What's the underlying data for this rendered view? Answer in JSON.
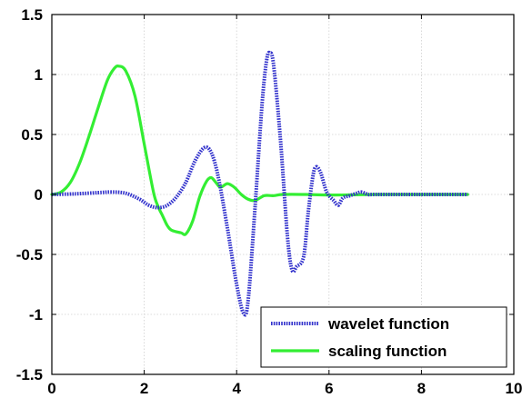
{
  "chart_data": {
    "type": "line",
    "title": "",
    "xlabel": "",
    "ylabel": "",
    "xlim": [
      0,
      10
    ],
    "ylim": [
      -1.5,
      1.5
    ],
    "grid": true,
    "legend_position": "bottom-right",
    "x_ticks": [
      0,
      2,
      4,
      6,
      8,
      10
    ],
    "x_tick_labels": [
      "0",
      "2",
      "4",
      "6",
      "8",
      "10"
    ],
    "y_ticks": [
      1.5,
      1,
      0.5,
      0,
      -0.5,
      -1,
      -1.5
    ],
    "y_tick_labels": [
      "1.5",
      "1",
      "0.5",
      "0",
      "-0.5",
      "-1",
      "-1.5"
    ],
    "series": [
      {
        "name": "wavelet function",
        "color": "#3333cc",
        "style": "dotted-thick",
        "points": [
          [
            0,
            0
          ],
          [
            0.5,
            0.005
          ],
          [
            1.0,
            0.015
          ],
          [
            1.3,
            0.02
          ],
          [
            1.6,
            0.01
          ],
          [
            1.9,
            -0.04
          ],
          [
            2.1,
            -0.09
          ],
          [
            2.3,
            -0.11
          ],
          [
            2.5,
            -0.09
          ],
          [
            2.7,
            -0.02
          ],
          [
            2.9,
            0.1
          ],
          [
            3.1,
            0.28
          ],
          [
            3.3,
            0.39
          ],
          [
            3.45,
            0.35
          ],
          [
            3.6,
            0.15
          ],
          [
            3.8,
            -0.28
          ],
          [
            4.0,
            -0.75
          ],
          [
            4.15,
            -0.99
          ],
          [
            4.25,
            -0.88
          ],
          [
            4.4,
            -0.1
          ],
          [
            4.55,
            0.75
          ],
          [
            4.65,
            1.12
          ],
          [
            4.72,
            1.18
          ],
          [
            4.8,
            1.08
          ],
          [
            4.95,
            0.45
          ],
          [
            5.1,
            -0.35
          ],
          [
            5.2,
            -0.63
          ],
          [
            5.3,
            -0.6
          ],
          [
            5.45,
            -0.52
          ],
          [
            5.55,
            -0.15
          ],
          [
            5.65,
            0.15
          ],
          [
            5.72,
            0.23
          ],
          [
            5.82,
            0.18
          ],
          [
            5.95,
            0.02
          ],
          [
            6.1,
            -0.05
          ],
          [
            6.2,
            -0.09
          ],
          [
            6.3,
            -0.03
          ],
          [
            6.45,
            -0.01
          ],
          [
            6.6,
            0.01
          ],
          [
            6.7,
            0.02
          ],
          [
            6.85,
            0.0
          ],
          [
            7.0,
            0.0
          ],
          [
            8.0,
            0.0
          ],
          [
            9.0,
            0.0
          ]
        ]
      },
      {
        "name": "scaling function",
        "color": "#33ee33",
        "style": "solid",
        "points": [
          [
            0,
            0
          ],
          [
            0.2,
            0.02
          ],
          [
            0.4,
            0.1
          ],
          [
            0.6,
            0.26
          ],
          [
            0.8,
            0.48
          ],
          [
            1.0,
            0.72
          ],
          [
            1.2,
            0.95
          ],
          [
            1.35,
            1.05
          ],
          [
            1.45,
            1.07
          ],
          [
            1.6,
            1.03
          ],
          [
            1.8,
            0.82
          ],
          [
            2.0,
            0.42
          ],
          [
            2.2,
            0.02
          ],
          [
            2.3,
            -0.1
          ],
          [
            2.4,
            -0.18
          ],
          [
            2.5,
            -0.26
          ],
          [
            2.6,
            -0.3
          ],
          [
            2.8,
            -0.32
          ],
          [
            2.9,
            -0.33
          ],
          [
            3.05,
            -0.22
          ],
          [
            3.2,
            -0.02
          ],
          [
            3.35,
            0.11
          ],
          [
            3.45,
            0.14
          ],
          [
            3.55,
            0.1
          ],
          [
            3.65,
            0.06
          ],
          [
            3.8,
            0.09
          ],
          [
            3.95,
            0.06
          ],
          [
            4.1,
            0.0
          ],
          [
            4.25,
            -0.04
          ],
          [
            4.4,
            -0.05
          ],
          [
            4.6,
            -0.01
          ],
          [
            4.8,
            -0.01
          ],
          [
            5.0,
            0.0
          ],
          [
            5.5,
            0.0
          ],
          [
            6.0,
            -0.005
          ],
          [
            7.0,
            0.0
          ],
          [
            8.0,
            0.0
          ],
          [
            9.0,
            0.0
          ]
        ]
      }
    ]
  }
}
